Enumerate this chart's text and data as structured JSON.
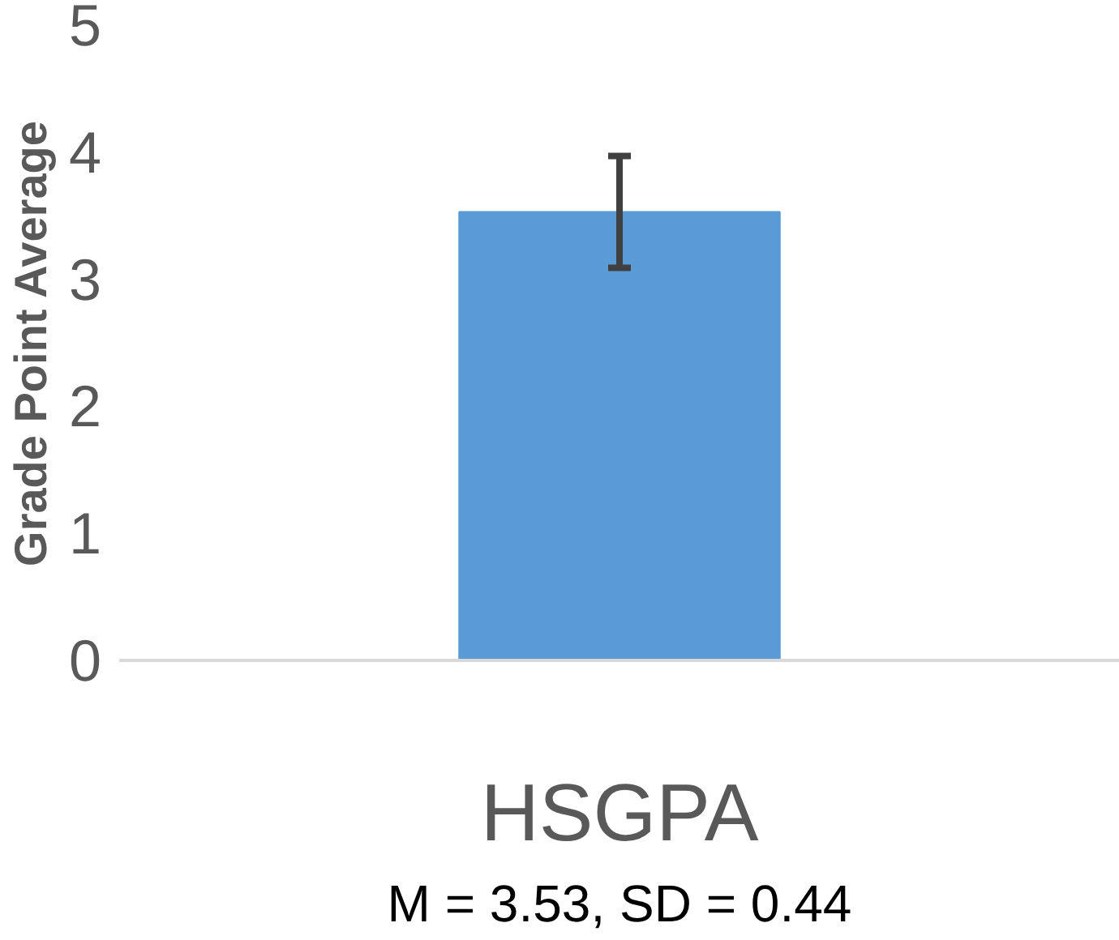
{
  "chart_data": {
    "type": "bar",
    "ylabel": "Grade Point Average",
    "categories": [
      "HSGPA"
    ],
    "values": [
      3.53
    ],
    "errors": [
      0.44
    ],
    "color": "#5b9bd5",
    "ylim": [
      0,
      5
    ],
    "yticks": [
      0,
      1,
      2,
      3,
      4,
      5
    ],
    "grid": false,
    "annotations": [
      "M = 3.53, SD = 0.44"
    ]
  }
}
